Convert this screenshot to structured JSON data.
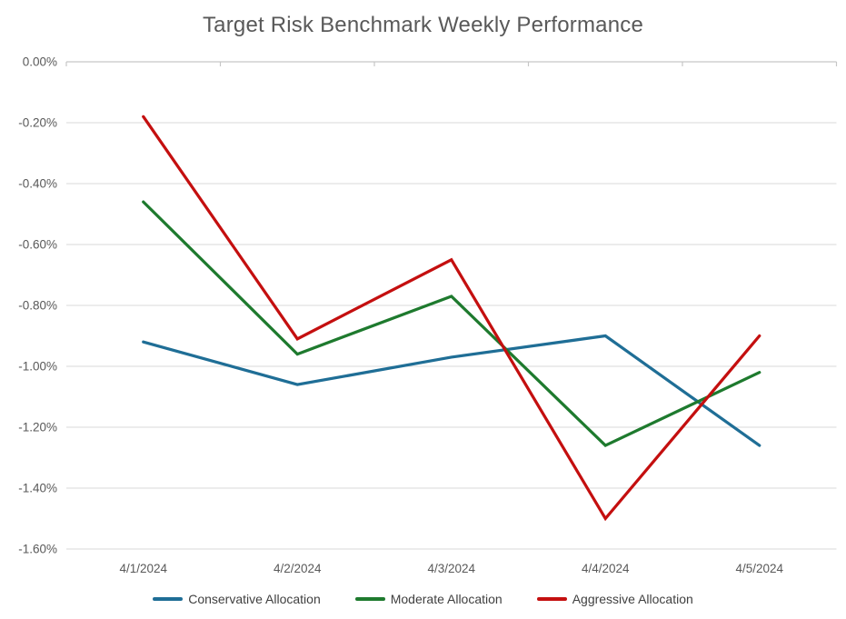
{
  "title": "Target Risk Benchmark Weekly Performance",
  "chart_data": {
    "type": "line",
    "title": "Target Risk Benchmark Weekly Performance",
    "categories": [
      "4/1/2024",
      "4/2/2024",
      "4/3/2024",
      "4/4/2024",
      "4/5/2024"
    ],
    "series": [
      {
        "name": "Conservative Allocation",
        "color": "#1F6E96",
        "values": [
          -0.92,
          -1.06,
          -0.97,
          -0.9,
          -1.26
        ]
      },
      {
        "name": "Moderate Allocation",
        "color": "#1E7A2E",
        "values": [
          -0.46,
          -0.96,
          -0.77,
          -1.26,
          -1.02
        ]
      },
      {
        "name": "Aggressive Allocation",
        "color": "#C40F0F",
        "values": [
          -0.18,
          -0.91,
          -0.65,
          -1.5,
          -0.9
        ]
      }
    ],
    "y_axis": {
      "min": -1.6,
      "max": 0,
      "step": 0.2,
      "tick_labels": [
        "0.00%",
        "-0.20%",
        "-0.40%",
        "-0.60%",
        "-0.80%",
        "-1.00%",
        "-1.20%",
        "-1.40%",
        "-1.60%"
      ]
    },
    "x_axis_position": "zero-line-top",
    "grid": true,
    "legend_position": "bottom",
    "gridline_color": "#D9D9D9",
    "axis_line_color": "#C6C6C6",
    "text_color": "#595959"
  }
}
